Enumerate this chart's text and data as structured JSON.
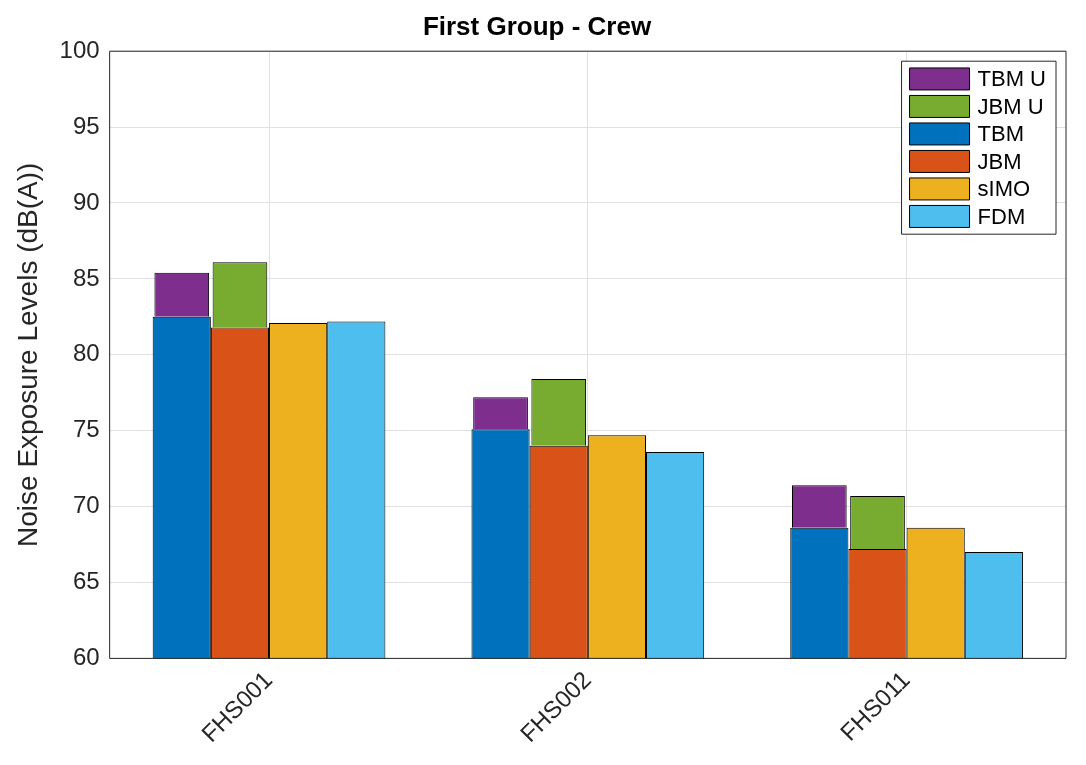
{
  "chart_data": {
    "type": "bar",
    "title": "First Group - Crew",
    "ylabel": "Noise Exposure Levels (dB(A))",
    "categories": [
      "FHS001",
      "FHS002",
      "FHS011"
    ],
    "series": [
      {
        "name": "TBM",
        "color": "#0072bd",
        "values": [
          82.5,
          75.1,
          68.6
        ]
      },
      {
        "name": "TBM U",
        "color": "#7e2f8e",
        "base": [
          82.5,
          75.1,
          68.6
        ],
        "values": [
          2.9,
          2.1,
          2.8
        ]
      },
      {
        "name": "JBM",
        "color": "#d95319",
        "values": [
          81.8,
          74.0,
          67.2
        ]
      },
      {
        "name": "JBM U",
        "color": "#77ac30",
        "base": [
          81.8,
          74.0,
          67.2
        ],
        "values": [
          4.3,
          4.4,
          3.5
        ]
      },
      {
        "name": "sIMO",
        "color": "#edb120",
        "values": [
          82.1,
          74.7,
          68.6
        ]
      },
      {
        "name": "FDM",
        "color": "#4dbeee",
        "values": [
          82.2,
          73.6,
          67.0
        ]
      }
    ],
    "ylim": [
      60,
      100
    ],
    "yticks": [
      60,
      65,
      70,
      75,
      80,
      85,
      90,
      95,
      100
    ],
    "grid": true,
    "legend": "top right"
  }
}
